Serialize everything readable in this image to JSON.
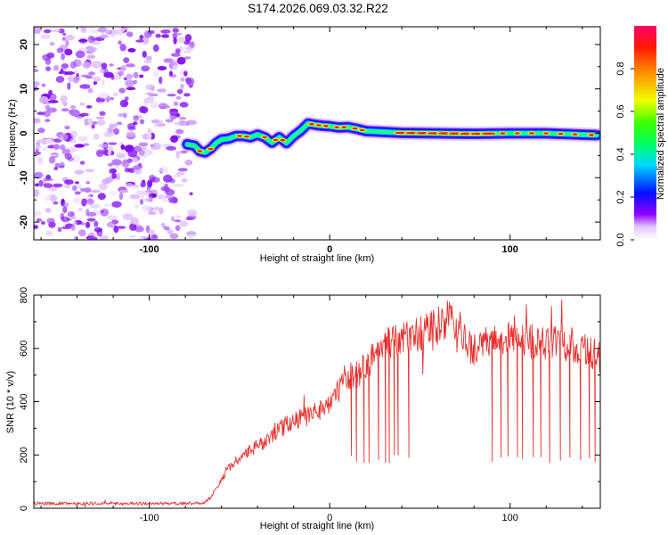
{
  "title": "S174.2026.069.03.32.R22",
  "colors": {
    "axis": "#000000",
    "snr_line": "#e8312f",
    "noise": "#8a2be2",
    "colormap": [
      "#ffffff",
      "#8f00ff",
      "#0000ff",
      "#00e5ff",
      "#00ff44",
      "#f0ff00",
      "#ff9000",
      "#ff0000",
      "#ff0066"
    ]
  },
  "chart_data": [
    {
      "type": "heatmap",
      "name": "spectrogram",
      "xlabel": "Height of straight line (km)",
      "ylabel": "Frequency (Hz)",
      "xlim": [
        -164,
        150
      ],
      "ylim": [
        -24,
        24
      ],
      "xticks": [
        -100,
        0,
        100
      ],
      "xtick_labels": [
        "-100",
        "0",
        "100"
      ],
      "yticks": [
        -20,
        -10,
        0,
        10,
        20
      ],
      "ytick_labels": [
        "-20",
        "-10",
        "0",
        "10",
        "20"
      ],
      "noise_region_end_km": -79,
      "ridge": {
        "x": [
          -79,
          -75,
          -72,
          -69,
          -66,
          -63,
          -60,
          -56,
          -52,
          -48,
          -44,
          -40,
          -36,
          -32,
          -28,
          -24,
          -20,
          -16,
          -12,
          -8,
          -4,
          0,
          5,
          10,
          15,
          20,
          30,
          40,
          60,
          80,
          100,
          120,
          140,
          148
        ],
        "y": [
          -2.5,
          -2.8,
          -4,
          -4.3,
          -3.5,
          -2.2,
          -1.4,
          -1.2,
          -0.6,
          -0.6,
          -0.9,
          -0.3,
          -0.9,
          -2.1,
          -0.9,
          -2.2,
          -0.6,
          0.6,
          2.2,
          1.9,
          1.7,
          1.6,
          1.3,
          1.4,
          1.0,
          0.5,
          0.3,
          0.1,
          0.0,
          -0.1,
          0.0,
          0.0,
          -0.3,
          -0.4
        ]
      },
      "colorbar": {
        "label": "Normalized spectral amplitude",
        "ticks": [
          0.0,
          0.2,
          0.4,
          0.6,
          0.8
        ],
        "tick_labels": [
          "0.0",
          "0.2",
          "0.4",
          "0.6",
          "0.8"
        ],
        "range": [
          0,
          1
        ]
      }
    },
    {
      "type": "line",
      "name": "snr",
      "xlabel": "Height of straight line (km)",
      "ylabel": "SNR (10 * v/v)",
      "xlim": [
        -164,
        150
      ],
      "ylim": [
        0,
        800
      ],
      "xticks": [
        -100,
        0,
        100
      ],
      "xtick_labels": [
        "-100",
        "0",
        "100"
      ],
      "yticks": [
        0,
        200,
        400,
        600,
        800
      ],
      "ytick_labels": [
        "0",
        "200",
        "400",
        "600",
        "800"
      ],
      "trend": {
        "x": [
          -164,
          -80,
          -70,
          -66,
          -62,
          -58,
          -55,
          -50,
          -45,
          -40,
          -35,
          -30,
          -25,
          -20,
          -15,
          -10,
          -5,
          0,
          5,
          10,
          15,
          20,
          25,
          30,
          35,
          40,
          45,
          50,
          55,
          60,
          65,
          70,
          75,
          80,
          85,
          90,
          95,
          100,
          105,
          110,
          115,
          120,
          125,
          130,
          135,
          140,
          145,
          150
        ],
        "y": [
          18,
          18,
          20,
          40,
          85,
          130,
          160,
          185,
          210,
          235,
          255,
          285,
          310,
          330,
          340,
          350,
          375,
          400,
          440,
          480,
          500,
          540,
          580,
          610,
          630,
          640,
          645,
          650,
          665,
          680,
          710,
          700,
          620,
          600,
          610,
          625,
          640,
          655,
          650,
          630,
          615,
          625,
          640,
          620,
          610,
          600,
          580,
          560
        ]
      },
      "dropouts_x_km": [
        12,
        15,
        19,
        22,
        27,
        31,
        33,
        36,
        38,
        44,
        90,
        95,
        99,
        104,
        107,
        113,
        117,
        122,
        128,
        133,
        139,
        144,
        147
      ],
      "dropout_floor": 180
    }
  ]
}
